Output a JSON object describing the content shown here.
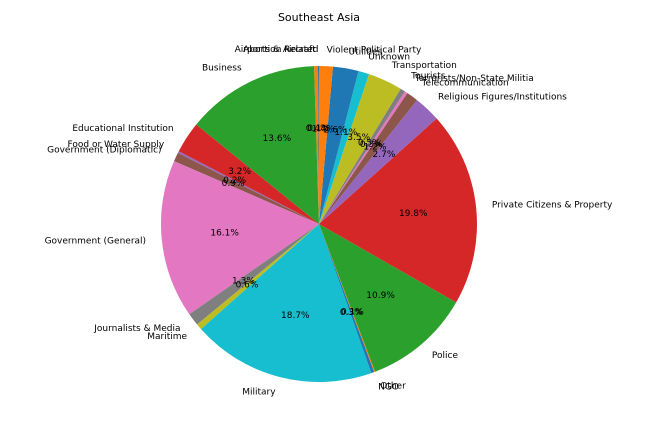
{
  "chart_data": {
    "type": "pie",
    "title": "Southeast Asia",
    "start_angle_deg": 90,
    "direction": "counterclockwise",
    "categories": [
      "Abortion Related",
      "Airports & Aircraft",
      "Business",
      "Educational Institution",
      "Food or Water Supply",
      "Government (Diplomatic)",
      "Government (General)",
      "Journalists & Media",
      "Maritime",
      "Military",
      "NGO",
      "Other",
      "Police",
      "Private Citizens & Property",
      "Religious Figures/Institutions",
      "Telecommunication",
      "Terrorists/Non-State Militia",
      "Tourists",
      "Transportation",
      "Unknown",
      "Utilities",
      "Violent Political Party"
    ],
    "values": [
      0.1,
      0.4,
      13.6,
      3.2,
      0.2,
      0.9,
      16.1,
      1.3,
      0.6,
      18.7,
      0.3,
      0.1,
      10.9,
      19.8,
      2.7,
      1.2,
      0.3,
      0.5,
      3.5,
      1.1,
      2.6,
      1.4
    ],
    "labels_pct": [
      "0.1%",
      "0.4%",
      "13.6%",
      "3.2%",
      "0.2%",
      "0.9%",
      "16.1%",
      "1.3%",
      "0.6%",
      "18.7%",
      "0.3%",
      "0.1%",
      "10.9%",
      "19.8%",
      "2.7%",
      "1.2%",
      "0.3%",
      "0.5%",
      "3.5%",
      "1.1%",
      "2.6%",
      "1.4%"
    ],
    "colors": [
      "#1f77b4",
      "#ff7f0e",
      "#2ca02c",
      "#d62728",
      "#9467bd",
      "#8c564b",
      "#e377c2",
      "#7f7f7f",
      "#bcbd22",
      "#17becf",
      "#1f77b4",
      "#ff7f0e",
      "#2ca02c",
      "#d62728",
      "#9467bd",
      "#8c564b",
      "#e377c2",
      "#7f7f7f",
      "#bcbd22",
      "#17becf",
      "#1f77b4",
      "#ff7f0e"
    ]
  }
}
